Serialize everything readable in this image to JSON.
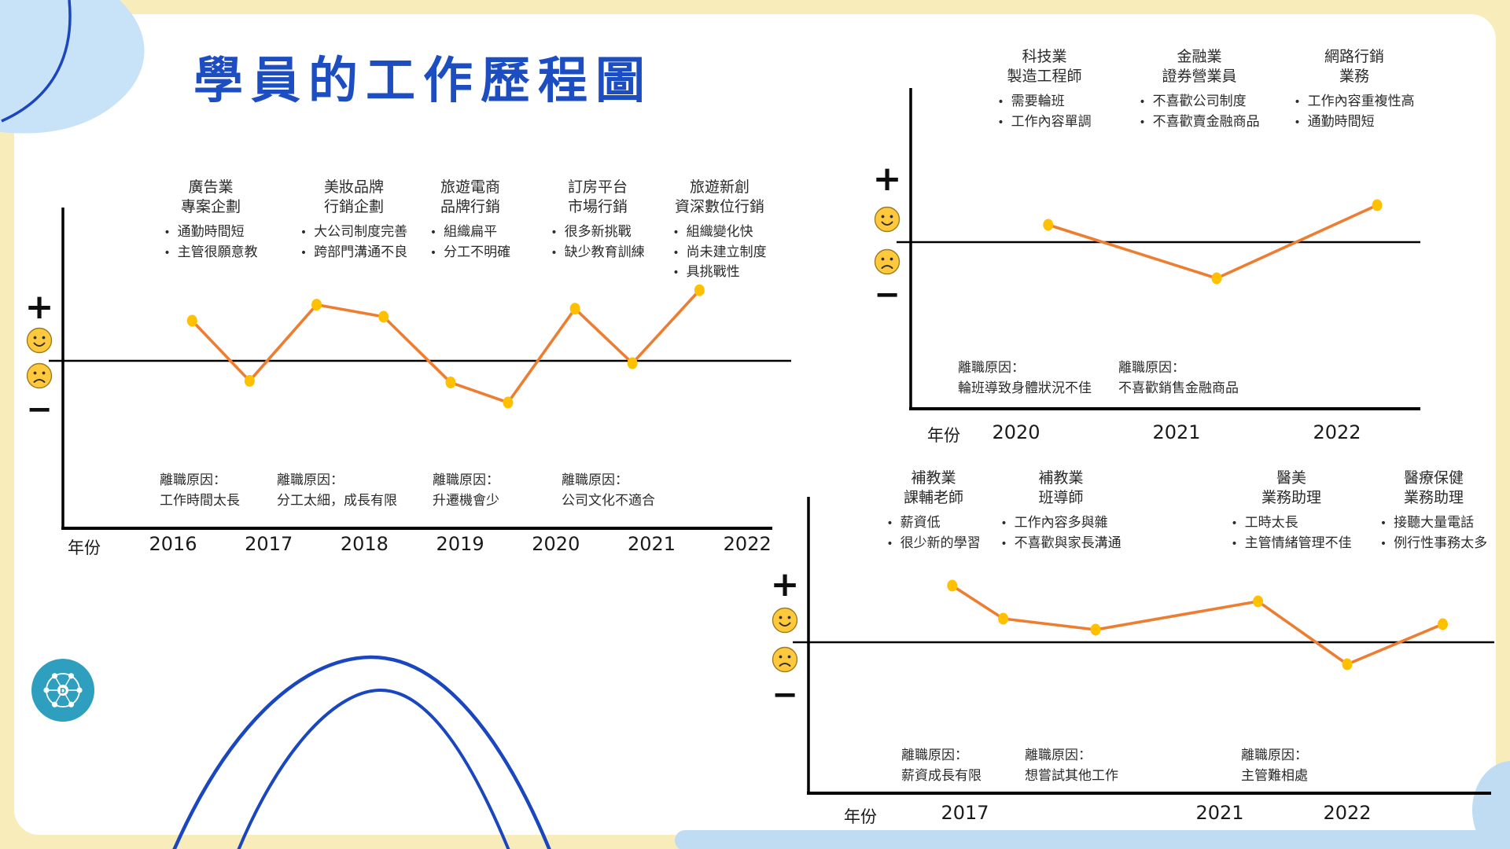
{
  "title": "學員的工作歷程圖",
  "ui": {
    "x_axis_title": "年份",
    "leave_reason_label": "離職原因：",
    "axis_plus": "+",
    "axis_minus": "−"
  },
  "colors": {
    "title_blue": "#1c4ec2",
    "line_orange": "#ed7d31",
    "dot_yellow": "#ffc000",
    "frame_yellow": "#f8ecbb",
    "blob_blue": "#c8e3f8",
    "strip_blue": "#bfdcf2",
    "deco_line_blue": "#1a46c0",
    "logo_teal": "#2e9fbe",
    "smiley_yellow": "#ffc83d"
  },
  "charts": [
    {
      "name": "career-journey-1",
      "jobs": [
        {
          "industry": "廣告業",
          "role": "專案企劃",
          "notes": [
            "通勤時間短",
            "主管很願意教"
          ]
        },
        {
          "industry": "美妝品牌",
          "role": "行銷企劃",
          "notes": [
            "大公司制度完善",
            "跨部門溝通不良"
          ]
        },
        {
          "industry": "旅遊電商",
          "role": "品牌行銷",
          "notes": [
            "組織扁平",
            "分工不明確"
          ]
        },
        {
          "industry": "訂房平台",
          "role": "市場行銷",
          "notes": [
            "很多新挑戰",
            "缺少教育訓練"
          ]
        },
        {
          "industry": "旅遊新創",
          "role": "資深數位行銷",
          "notes": [
            "組織變化快",
            "尚未建立制度",
            "具挑戰性"
          ]
        }
      ],
      "leave_reasons": [
        "工作時間太長",
        "分工太細，成長有限",
        "升遷機會少",
        "公司文化不適合"
      ],
      "years": [
        "2016",
        "2017",
        "2018",
        "2019",
        "2020",
        "2021",
        "2022"
      ]
    },
    {
      "name": "career-journey-2",
      "jobs": [
        {
          "industry": "科技業",
          "role": "製造工程師",
          "notes": [
            "需要輪班",
            "工作內容單調"
          ]
        },
        {
          "industry": "金融業",
          "role": "證券營業員",
          "notes": [
            "不喜歡公司制度",
            "不喜歡賣金融商品"
          ]
        },
        {
          "industry": "網路行銷",
          "role": "業務",
          "notes": [
            "工作內容重複性高",
            "通勤時間短"
          ]
        }
      ],
      "leave_reasons": [
        "輪班導致身體狀況不佳",
        "不喜歡銷售金融商品"
      ],
      "years": [
        "2020",
        "2021",
        "2022"
      ]
    },
    {
      "name": "career-journey-3",
      "jobs": [
        {
          "industry": "補教業",
          "role": "課輔老師",
          "notes": [
            "薪資低",
            "很少新的學習"
          ]
        },
        {
          "industry": "補教業",
          "role": "班導師",
          "notes": [
            "工作內容多與雜",
            "不喜歡與家長溝通"
          ]
        },
        {
          "industry": "醫美",
          "role": "業務助理",
          "notes": [
            "工時太長",
            "主管情緒管理不佳"
          ]
        },
        {
          "industry": "醫療保健",
          "role": "業務助理",
          "notes": [
            "接聽大量電話",
            "例行性事務太多"
          ]
        }
      ],
      "leave_reasons": [
        "薪資成長有限",
        "想嘗試其他工作",
        "主管難相處"
      ],
      "years": [
        "2017",
        "2021",
        "2022"
      ]
    }
  ],
  "chart_data": [
    {
      "type": "line",
      "xlabel": "年份",
      "x_ticks": [
        "2016",
        "2017",
        "2018",
        "2019",
        "2020",
        "2021",
        "2022"
      ],
      "y_axis_symbols": [
        "+",
        "☺",
        "☹",
        "−"
      ],
      "ylim": [
        -1,
        1
      ],
      "x": [
        2016.2,
        2016.8,
        2017.5,
        2018.2,
        2018.9,
        2019.5,
        2020.2,
        2020.8,
        2021.5
      ],
      "values": [
        0.5,
        -0.25,
        0.7,
        0.55,
        -0.27,
        -0.52,
        0.65,
        -0.03,
        0.88
      ]
    },
    {
      "type": "line",
      "xlabel": "年份",
      "x_ticks": [
        "2020",
        "2021",
        "2022"
      ],
      "y_axis_symbols": [
        "+",
        "☺",
        "☹",
        "−"
      ],
      "ylim": [
        -1,
        1
      ],
      "x": [
        2020.2,
        2021.25,
        2022.25
      ],
      "values": [
        0.22,
        -0.46,
        0.47
      ]
    },
    {
      "type": "line",
      "xlabel": "年份",
      "x_ticks": [
        "2017",
        "2021",
        "2022"
      ],
      "y_axis_symbols": [
        "+",
        "☺",
        "☹",
        "−"
      ],
      "ylim": [
        -1,
        1
      ],
      "x": [
        2016.8,
        2017.6,
        2019.05,
        2021.3,
        2022,
        2022.75
      ],
      "values": [
        0.72,
        0.3,
        0.16,
        0.52,
        -0.28,
        0.23
      ]
    }
  ]
}
